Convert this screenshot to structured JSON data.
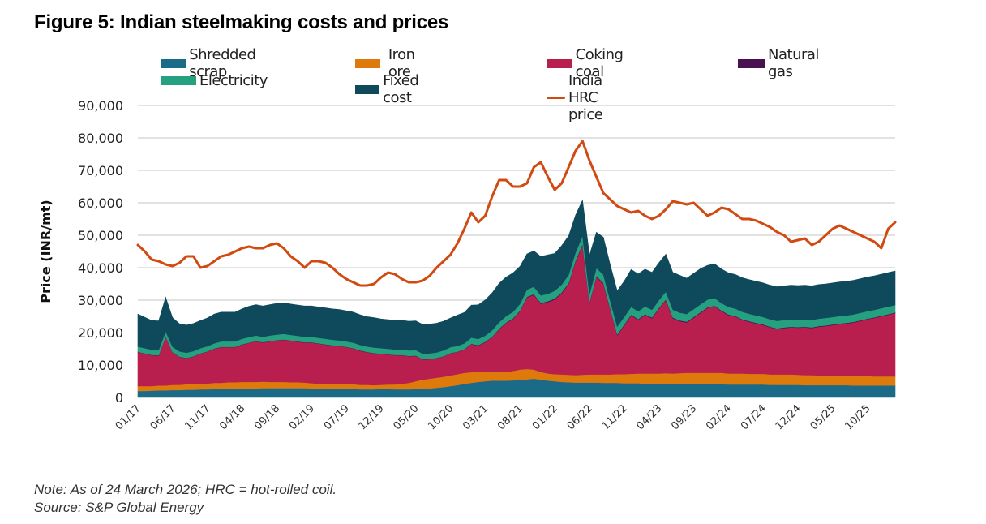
{
  "figure": {
    "title": "Figure 5: Indian steelmaking costs and prices",
    "note": "Note: As of 24 March 2026; HRC = hot-rolled coil.",
    "source": "Source: S&P Global Energy"
  },
  "chart_data": {
    "type": "area",
    "title": "Figure 5: Indian steelmaking costs and prices",
    "xlabel": "",
    "ylabel": "Price (INR/mt)",
    "ylim": [
      0,
      90000
    ],
    "yticks": [
      0,
      10000,
      20000,
      30000,
      40000,
      50000,
      60000,
      70000,
      80000,
      90000
    ],
    "ytick_labels": [
      "0",
      "10,000",
      "20,000",
      "30,000",
      "40,000",
      "50,000",
      "60,000",
      "70,000",
      "80,000",
      "90,000"
    ],
    "xtick_labels": [
      "01/17",
      "06/17",
      "11/17",
      "04/18",
      "09/18",
      "02/19",
      "07/19",
      "12/19",
      "05/20",
      "10/20",
      "03/21",
      "08/21",
      "01/22",
      "06/22",
      "11/22",
      "04/23",
      "09/23",
      "02/24",
      "07/24",
      "12/24",
      "05/25",
      "10/25"
    ],
    "grid": true,
    "legend_position": "top",
    "x_start": "01/17",
    "x_end": "03/26",
    "x_frequency": "monthly (approx.)",
    "stacked": true,
    "series": [
      {
        "name": "Shredded scrap",
        "kind": "stacked-area",
        "color": "#1b6b88",
        "values": [
          2000,
          2000,
          2100,
          2200,
          2200,
          2300,
          2300,
          2400,
          2400,
          2500,
          2500,
          2600,
          2600,
          2700,
          2700,
          2800,
          2800,
          2800,
          2900,
          2900,
          2900,
          2900,
          2900,
          2900,
          2900,
          2800,
          2800,
          2800,
          2700,
          2700,
          2600,
          2600,
          2500,
          2500,
          2500,
          2600,
          2600,
          2500,
          2500,
          2500,
          2600,
          2700,
          2800,
          3000,
          3200,
          3500,
          3800,
          4200,
          4500,
          4800,
          5000,
          5200,
          5200,
          5200,
          5300,
          5400,
          5600,
          5800,
          5500,
          5200,
          5000,
          4800,
          4700,
          4600,
          4600,
          4600,
          4600,
          4500,
          4500,
          4500,
          4400,
          4400,
          4400,
          4300,
          4300,
          4300,
          4300,
          4200,
          4200,
          4200,
          4200,
          4100,
          4100,
          4100,
          4100,
          4000,
          4000,
          4000,
          4000,
          4000,
          4000,
          3900,
          3900,
          3900,
          3900,
          3900,
          3800,
          3800,
          3800,
          3800,
          3800,
          3800,
          3800,
          3700,
          3700,
          3700,
          3700,
          3700,
          3700,
          3700
        ]
      },
      {
        "name": "Iron ore",
        "kind": "stacked-area",
        "color": "#de7a0c",
        "values": [
          1500,
          1500,
          1400,
          1500,
          1500,
          1600,
          1600,
          1700,
          1700,
          1800,
          1800,
          1900,
          1900,
          2000,
          2000,
          2000,
          2000,
          2000,
          2000,
          1900,
          1900,
          1900,
          1800,
          1800,
          1700,
          1600,
          1500,
          1500,
          1500,
          1500,
          1500,
          1500,
          1400,
          1400,
          1300,
          1300,
          1400,
          1500,
          1700,
          2000,
          2400,
          2800,
          3000,
          3100,
          3200,
          3300,
          3400,
          3400,
          3300,
          3200,
          3000,
          2900,
          2800,
          2700,
          2900,
          3200,
          3200,
          2800,
          2400,
          2200,
          2200,
          2300,
          2300,
          2300,
          2400,
          2500,
          2500,
          2600,
          2600,
          2700,
          2800,
          2900,
          3000,
          3100,
          3100,
          3100,
          3200,
          3200,
          3300,
          3400,
          3400,
          3500,
          3500,
          3500,
          3500,
          3400,
          3400,
          3400,
          3300,
          3300,
          3300,
          3200,
          3200,
          3200,
          3200,
          3100,
          3100,
          3100,
          3000,
          3000,
          3000,
          3000,
          3000,
          2900,
          2900,
          2900,
          2800,
          2800,
          2800,
          2800
        ]
      },
      {
        "name": "Coking coal",
        "kind": "stacked-area",
        "color": "#b81f4e",
        "values": [
          10500,
          10000,
          9500,
          9200,
          15000,
          10000,
          8600,
          8000,
          8500,
          9200,
          9800,
          10500,
          11000,
          10800,
          10800,
          11500,
          12000,
          12500,
          12000,
          12500,
          12800,
          13000,
          12800,
          12500,
          12300,
          12500,
          12300,
          12000,
          11800,
          11600,
          11400,
          11000,
          10500,
          10000,
          9800,
          9500,
          9200,
          9000,
          8800,
          8200,
          7800,
          6200,
          6000,
          6000,
          6200,
          6800,
          6800,
          7200,
          8600,
          8000,
          9000,
          10500,
          13000,
          15000,
          16000,
          18000,
          22000,
          23000,
          21000,
          22000,
          23000,
          25000,
          28000,
          35000,
          40000,
          22000,
          30000,
          28000,
          20000,
          12000,
          15000,
          18000,
          16500,
          18000,
          17000,
          20000,
          22500,
          17000,
          16000,
          15500,
          17000,
          18500,
          20000,
          20500,
          19000,
          18000,
          17500,
          16500,
          16000,
          15500,
          15000,
          14500,
          14000,
          14300,
          14500,
          14500,
          14700,
          14500,
          15000,
          15200,
          15500,
          15800,
          16000,
          16500,
          17000,
          17500,
          18000,
          18500,
          19000,
          19500
        ]
      },
      {
        "name": "Natural gas",
        "kind": "stacked-area",
        "color": "#4a1150",
        "values": [
          100,
          100,
          100,
          100,
          100,
          100,
          100,
          100,
          100,
          100,
          100,
          100,
          100,
          100,
          100,
          100,
          100,
          100,
          100,
          100,
          100,
          100,
          100,
          100,
          100,
          100,
          100,
          100,
          100,
          100,
          100,
          100,
          100,
          100,
          100,
          100,
          100,
          100,
          100,
          100,
          100,
          100,
          100,
          100,
          100,
          100,
          100,
          100,
          150,
          150,
          150,
          150,
          200,
          200,
          200,
          200,
          250,
          250,
          250,
          250,
          300,
          300,
          300,
          300,
          300,
          300,
          300,
          300,
          250,
          250,
          250,
          250,
          250,
          250,
          250,
          250,
          250,
          250,
          250,
          250,
          250,
          250,
          200,
          200,
          200,
          200,
          200,
          200,
          200,
          200,
          200,
          200,
          200,
          200,
          200,
          200,
          200,
          200,
          200,
          200,
          200,
          200,
          200,
          200,
          200,
          200,
          200,
          200,
          200,
          200
        ]
      },
      {
        "name": "Electricity",
        "kind": "stacked-area",
        "color": "#26a17f",
        "values": [
          1600,
          1600,
          1600,
          1600,
          1600,
          1600,
          1600,
          1600,
          1600,
          1600,
          1600,
          1600,
          1700,
          1700,
          1700,
          1700,
          1700,
          1700,
          1700,
          1700,
          1700,
          1700,
          1700,
          1700,
          1700,
          1700,
          1700,
          1700,
          1700,
          1700,
          1700,
          1700,
          1700,
          1700,
          1700,
          1700,
          1700,
          1700,
          1700,
          1700,
          1700,
          1700,
          1700,
          1700,
          1800,
          1800,
          1800,
          1800,
          1900,
          1900,
          1900,
          2000,
          2000,
          2000,
          2000,
          2100,
          2200,
          2300,
          2300,
          2300,
          2400,
          2400,
          2500,
          2500,
          2500,
          2500,
          2500,
          2500,
          2400,
          2400,
          2400,
          2400,
          2400,
          2400,
          2400,
          2400,
          2400,
          2400,
          2400,
          2400,
          2400,
          2400,
          2400,
          2400,
          2300,
          2300,
          2300,
          2300,
          2300,
          2300,
          2300,
          2300,
          2300,
          2300,
          2300,
          2300,
          2300,
          2300,
          2300,
          2300,
          2300,
          2300,
          2300,
          2300,
          2300,
          2300,
          2300,
          2300,
          2300,
          2300
        ]
      },
      {
        "name": "Fixed cost",
        "kind": "stacked-area",
        "color": "#0e4a5c",
        "values": [
          10000,
          9500,
          9000,
          9000,
          10500,
          9000,
          8500,
          8500,
          8500,
          8500,
          8700,
          9000,
          9000,
          9000,
          9000,
          9200,
          9500,
          9500,
          9500,
          9500,
          9600,
          9600,
          9500,
          9500,
          9500,
          9500,
          9500,
          9500,
          9500,
          9500,
          9400,
          9400,
          9300,
          9200,
          9200,
          9000,
          9000,
          9000,
          9000,
          9000,
          9000,
          9000,
          9000,
          9000,
          9000,
          9000,
          9500,
          9500,
          10000,
          10500,
          11000,
          11500,
          12000,
          12000,
          12000,
          11500,
          11000,
          11000,
          12000,
          12000,
          11500,
          12000,
          12000,
          11500,
          11000,
          12000,
          11000,
          11500,
          11000,
          11000,
          11000,
          11500,
          11500,
          11500,
          11500,
          11500,
          11500,
          11500,
          11500,
          11000,
          11000,
          11000,
          10500,
          10500,
          10500,
          10500,
          10500,
          10500,
          10500,
          10500,
          10500,
          10500,
          10500,
          10500,
          10500,
          10500,
          10500,
          10500,
          10500,
          10500,
          10500,
          10500,
          10500,
          10500,
          10500,
          10500,
          10500,
          10500,
          10500,
          10500
        ]
      },
      {
        "name": "India HRC price",
        "kind": "line",
        "color": "#d04a12",
        "values": [
          47000,
          45000,
          42500,
          42000,
          41000,
          40500,
          41500,
          43500,
          43500,
          40000,
          40500,
          42000,
          43500,
          44000,
          45000,
          46000,
          46500,
          46000,
          46000,
          47000,
          47500,
          46000,
          43500,
          42000,
          40000,
          42000,
          42000,
          41500,
          40000,
          38000,
          36500,
          35500,
          34500,
          34500,
          35000,
          37000,
          38500,
          38000,
          36500,
          35500,
          35500,
          36000,
          37500,
          40000,
          42000,
          44000,
          47500,
          52000,
          57000,
          54000,
          56000,
          62000,
          67000,
          67000,
          65000,
          65000,
          66000,
          71000,
          72500,
          68000,
          64000,
          66000,
          71000,
          76000,
          79000,
          73000,
          68000,
          63000,
          61000,
          59000,
          58000,
          57000,
          57500,
          56000,
          55000,
          56000,
          58000,
          60500,
          60000,
          59500,
          60000,
          58000,
          56000,
          57000,
          58500,
          58000,
          56500,
          55000,
          55000,
          54500,
          53500,
          52500,
          51000,
          50000,
          48000,
          48500,
          49000,
          47000,
          48000,
          50000,
          52000,
          53000,
          52000,
          51000,
          50000,
          49000,
          48000,
          46000,
          52000,
          54000
        ]
      }
    ]
  }
}
